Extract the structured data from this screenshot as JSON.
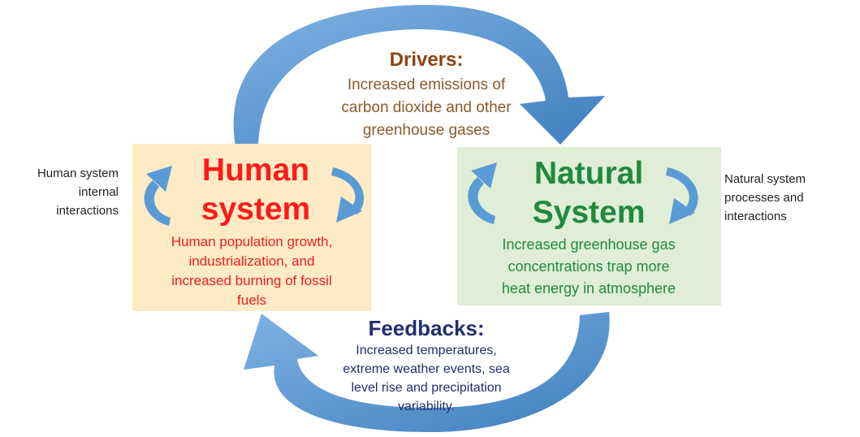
{
  "drivers": {
    "title": "Drivers:",
    "lines": [
      "Increased emissions of",
      "carbon dioxide and other",
      "greenhouse gases"
    ]
  },
  "human_system": {
    "title_lines": [
      "Human",
      "system"
    ],
    "description_lines": [
      "Human population growth,",
      "industrialization, and",
      "increased burning of fossil",
      "fuels"
    ],
    "box_color": "#fdebc5",
    "title_color": "#ff1a1a"
  },
  "natural_system": {
    "title_lines": [
      "Natural",
      "System"
    ],
    "description_lines": [
      "Increased greenhouse gas",
      "concentrations trap more",
      "heat energy in atmosphere"
    ],
    "box_color": "#e0eed7",
    "title_color": "#1f8a3e"
  },
  "feedbacks": {
    "title": "Feedbacks:",
    "lines": [
      "Increased temperatures,",
      "extreme weather events, sea",
      "level rise and precipitation",
      "variability."
    ]
  },
  "left_note": {
    "lines": [
      "Human system",
      "internal",
      "interactions"
    ]
  },
  "right_note": {
    "lines": [
      "Natural system",
      "processes and",
      "interactions"
    ]
  },
  "arrow_color": "#5b9bd5"
}
